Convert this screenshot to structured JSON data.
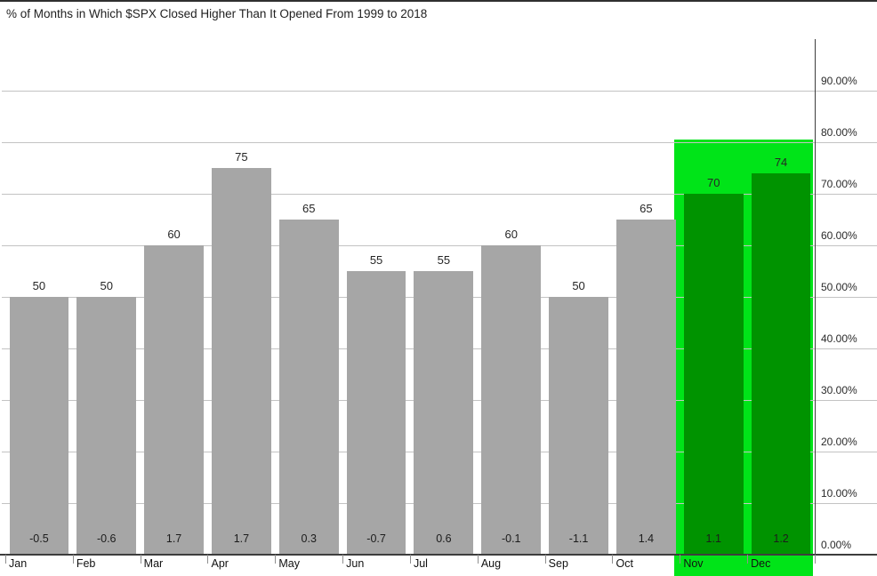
{
  "title": "% of Months in Which $SPX Closed Higher Than It Opened From 1999 to 2018",
  "chart_data": {
    "type": "bar",
    "title": "% of Months in Which $SPX Closed Higher Than It Opened From 1999 to 2018",
    "categories": [
      "Jan",
      "Feb",
      "Mar",
      "Apr",
      "May",
      "Jun",
      "Jul",
      "Aug",
      "Sep",
      "Oct",
      "Nov",
      "Dec"
    ],
    "series": [
      {
        "name": "pct_of_months_closed_higher",
        "values": [
          50,
          50,
          60,
          75,
          65,
          55,
          55,
          60,
          50,
          65,
          70,
          74
        ],
        "label_position": "above_bar"
      },
      {
        "name": "avg_monthly_change_pct",
        "values": [
          -0.5,
          -0.6,
          1.7,
          1.7,
          0.3,
          -0.7,
          0.6,
          -0.1,
          -1.1,
          1.4,
          1.1,
          1.2
        ],
        "label_position": "inside_bar_bottom"
      }
    ],
    "y_axis": {
      "side": "right",
      "min": 0,
      "max": 100,
      "tick_step": 10,
      "tick_labels": [
        "0.00%",
        "10.00%",
        "20.00%",
        "30.00%",
        "40.00%",
        "50.00%",
        "60.00%",
        "70.00%",
        "80.00%",
        "90.00%"
      ],
      "grid": true
    },
    "x_axis": {
      "tick_labels": [
        "Jan",
        "Feb",
        "Mar",
        "Apr",
        "May",
        "Jun",
        "Jul",
        "Aug",
        "Sep",
        "Oct",
        "Nov",
        "Dec"
      ]
    },
    "highlight": {
      "categories": [
        "Nov",
        "Dec"
      ],
      "start_index": 10,
      "end_index": 11,
      "from_value_below_axis": true,
      "to_value": 80
    },
    "legend": "none"
  },
  "colors": {
    "bar_gray": "#a6a6a6",
    "bar_green": "#009300",
    "highlight_green": "#00e418",
    "gridline": "#c3c3c3",
    "axis": "#3d3d3d",
    "text": "#1f1f1f"
  }
}
